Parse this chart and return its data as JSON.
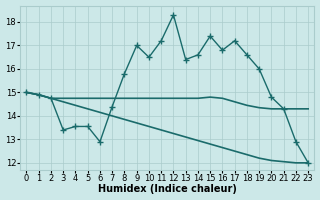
{
  "xlabel": "Humidex (Indice chaleur)",
  "xlim": [
    -0.5,
    23.5
  ],
  "ylim": [
    11.7,
    18.7
  ],
  "yticks": [
    12,
    13,
    14,
    15,
    16,
    17,
    18
  ],
  "xticks": [
    0,
    1,
    2,
    3,
    4,
    5,
    6,
    7,
    8,
    9,
    10,
    11,
    12,
    13,
    14,
    15,
    16,
    17,
    18,
    19,
    20,
    21,
    22,
    23
  ],
  "bg_color": "#cce8e8",
  "grid_color": "#aacccc",
  "line_color": "#1a6b6b",
  "series1_x": [
    0,
    1,
    2,
    3,
    4,
    5,
    6,
    7,
    8,
    9,
    10,
    11,
    12,
    13,
    14,
    15,
    16,
    17,
    18,
    19,
    20,
    21,
    22,
    23
  ],
  "series1_y": [
    15.0,
    14.9,
    14.75,
    14.75,
    14.75,
    14.75,
    14.75,
    14.75,
    14.75,
    14.75,
    14.75,
    14.75,
    14.75,
    14.75,
    14.75,
    14.8,
    14.75,
    14.6,
    14.45,
    14.35,
    14.3,
    14.3,
    14.3,
    14.3
  ],
  "series2_x": [
    0,
    1,
    2,
    3,
    4,
    5,
    6,
    7,
    8,
    9,
    10,
    11,
    12,
    13,
    14,
    15,
    16,
    17,
    18,
    19,
    20,
    21,
    22,
    23
  ],
  "series2_y": [
    15.0,
    14.9,
    14.75,
    14.6,
    14.45,
    14.3,
    14.15,
    14.0,
    13.85,
    13.7,
    13.55,
    13.4,
    13.25,
    13.1,
    12.95,
    12.8,
    12.65,
    12.5,
    12.35,
    12.2,
    12.1,
    12.05,
    12.0,
    12.0
  ],
  "series3_x": [
    0,
    1,
    2,
    3,
    4,
    5,
    6,
    7,
    8,
    9,
    10,
    11,
    12,
    13,
    14,
    15,
    16,
    17,
    18,
    19,
    20,
    21,
    22,
    23
  ],
  "series3_y": [
    15.0,
    14.9,
    14.75,
    13.4,
    13.55,
    13.55,
    12.9,
    14.4,
    15.8,
    17.0,
    16.5,
    17.2,
    18.3,
    16.4,
    16.6,
    17.4,
    16.8,
    17.2,
    16.6,
    16.0,
    14.8,
    14.3,
    12.9,
    12.0
  ]
}
